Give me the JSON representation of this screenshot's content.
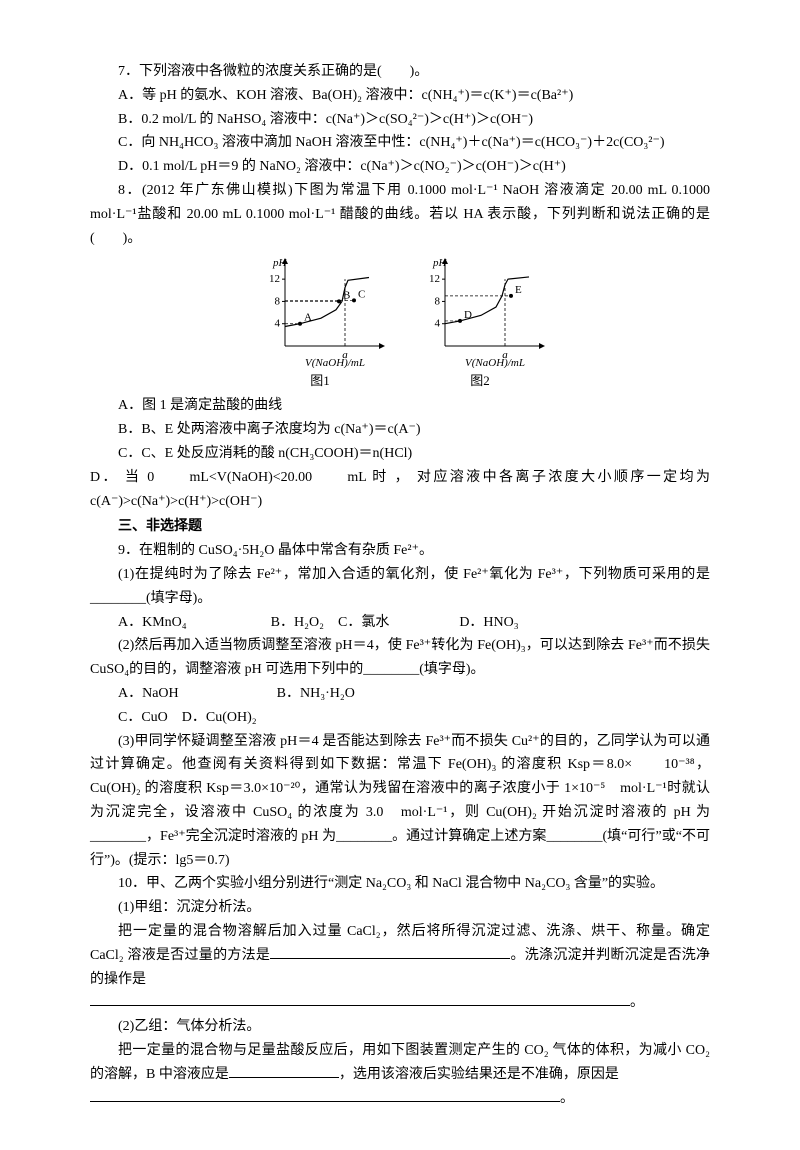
{
  "q7": {
    "stem": "7．下列溶液中各微粒的浓度关系正确的是(　　)。",
    "A": "A．等 pH 的氨水、KOH 溶液、Ba(OH)₂ 溶液中：c(NH₄⁺)＝c(K⁺)＝c(Ba²⁺)",
    "B": "B．0.2 mol/L 的 NaHSO₄ 溶液中：c(Na⁺)＞c(SO₄²⁻)＞c(H⁺)＞c(OH⁻)",
    "C": "C．向 NH₄HCO₃ 溶液中滴加 NaOH 溶液至中性：c(NH₄⁺)＋c(Na⁺)＝c(HCO₃⁻)＋2c(CO₃²⁻)",
    "D": "D．0.1 mol/L pH＝9 的 NaNO₂ 溶液中：c(Na⁺)＞c(NO₂⁻)＞c(OH⁻)＞c(H⁺)"
  },
  "q8": {
    "stem": "8．(2012 年广东佛山模拟)下图为常温下用 0.1000  mol·L⁻¹  NaOH 溶液滴定 20.00  mL 0.1000 mol·L⁻¹盐酸和 20.00  mL  0.1000  mol·L⁻¹ 醋酸的曲线。若以 HA 表示酸，下列判断和说法正确的是(　　)。",
    "A": "A．图 1 是滴定盐酸的曲线",
    "B": "B．B、E 处两溶液中离子浓度均为 c(Na⁺)＝c(A⁻)",
    "C": "C．C、E 处反应消耗的酸 n(CH₃COOH)＝n(HCl)",
    "D": "D． 当 0　　mL<V(NaOH)<20.00　　mL 时 ， 对应溶液中各离子浓度大小顺序一定均为 c(A⁻)>c(Na⁺)>c(H⁺)>c(OH⁻)",
    "chart": {
      "type": "line",
      "axis_color": "#000000",
      "curve_color": "#000000",
      "background_color": "#ffffff",
      "line_width": 1.2,
      "font_size": 11,
      "ylabel": "pH",
      "xlabel": "V(NaOH)/mL",
      "y_ticks": [
        4,
        8,
        12
      ],
      "x_tick_label": "a",
      "fig1": {
        "caption": "图1",
        "points": {
          "A": [
            5,
            4
          ],
          "B": [
            18,
            8
          ],
          "C": [
            23,
            8.2
          ]
        },
        "curve": [
          [
            0,
            3.5
          ],
          [
            5,
            4
          ],
          [
            12,
            5
          ],
          [
            17,
            6.5
          ],
          [
            19,
            8
          ],
          [
            20,
            10.5
          ],
          [
            21,
            11.8
          ],
          [
            28,
            12.3
          ]
        ]
      },
      "fig2": {
        "caption": "图2",
        "points": {
          "D": [
            5,
            4.5
          ],
          "E": [
            22,
            9
          ]
        },
        "curve": [
          [
            0,
            4
          ],
          [
            5,
            4.5
          ],
          [
            12,
            5.5
          ],
          [
            17,
            7
          ],
          [
            19,
            9
          ],
          [
            20,
            11
          ],
          [
            21,
            12
          ],
          [
            28,
            12.4
          ]
        ]
      }
    }
  },
  "section3": "三、非选择题",
  "q9": {
    "stem": "9．在粗制的 CuSO₄·5H₂O 晶体中常含有杂质 Fe²⁺。",
    "p1": "(1)在提纯时为了除去 Fe²⁺，常加入合适的氧化剂，使 Fe²⁺氧化为 Fe³⁺，下列物质可采用的是________(填字母)。",
    "p1_opts": "A．KMnO₄　　　　　　B．H₂O₂　C．氯水　　　　　D．HNO₃",
    "p2": "(2)然后再加入适当物质调整至溶液 pH＝4，使 Fe³⁺转化为 Fe(OH)₃，可以达到除去 Fe³⁺而不损失 CuSO₄的目的，调整溶液 pH 可选用下列中的________(填字母)。",
    "p2_optsA": "A．NaOH　　　　　　　B．NH₃·H₂O",
    "p2_optsB": "C．CuO　D．Cu(OH)₂",
    "p3": "(3)甲同学怀疑调整至溶液 pH＝4 是否能达到除去 Fe³⁺而不损失 Cu²⁺的目的，乙同学认为可以通过计算确定。他查阅有关资料得到如下数据：常温下 Fe(OH)₃ 的溶度积 Ksp＝8.0×　　10⁻³⁸，Cu(OH)₂ 的溶度积 Ksp＝3.0×10⁻²⁰，通常认为残留在溶液中的离子浓度小于 1×10⁻⁵　mol·L⁻¹时就认为沉淀完全，设溶液中 CuSO₄ 的浓度为 3.0　mol·L⁻¹，则 Cu(OH)₂ 开始沉淀时溶液的 pH 为________，Fe³⁺完全沉淀时溶液的 pH 为________。通过计算确定上述方案________(填“可行”或“不可行”)。(提示：lg5＝0.7)"
  },
  "q10": {
    "stem": "10．甲、乙两个实验小组分别进行“测定 Na₂CO₃ 和 NaCl 混合物中 Na₂CO₃ 含量”的实验。",
    "p1a": "(1)甲组：沉淀分析法。",
    "p1b": "把一定量的混合物溶解后加入过量 CaCl₂，然后将所得沉淀过滤、洗涤、烘干、称量。确定 CaCl₂ 溶液是否过量的方法是",
    "p1c": "。洗涤沉淀并判断沉淀是否洗净的操作是",
    "p1d": "。",
    "p2a": "(2)乙组：气体分析法。",
    "p2b": "把一定量的混合物与足量盐酸反应后，用如下图装置测定产生的 CO₂ 气体的体积，为减小 CO₂ 的溶解，B 中溶液应是",
    "p2c": "，选用该溶液后实验结果还是不准确，原因是",
    "p2d": "。"
  }
}
